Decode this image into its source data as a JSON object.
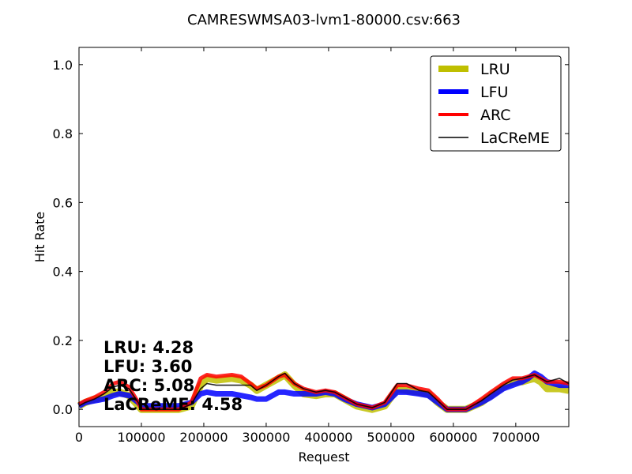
{
  "chart_data": {
    "type": "line",
    "title": "CAMRESWMSA03-lvm1-80000.csv:663",
    "xlabel": "Request",
    "ylabel": "Hit Rate",
    "xlim": [
      0,
      785000
    ],
    "ylim": [
      -0.05,
      1.05
    ],
    "x_ticks": [
      0,
      100000,
      200000,
      300000,
      400000,
      500000,
      600000,
      700000
    ],
    "x_tick_labels": [
      "0",
      "100000",
      "200000",
      "300000",
      "400000",
      "500000",
      "600000",
      "700000"
    ],
    "y_ticks": [
      0.0,
      0.2,
      0.4,
      0.6,
      0.8,
      1.0
    ],
    "y_tick_labels": [
      "0.0",
      "0.2",
      "0.4",
      "0.6",
      "0.8",
      "1.0"
    ],
    "grid": false,
    "legend_position": "top-right",
    "x": [
      0,
      10000,
      25000,
      40000,
      55000,
      65000,
      80000,
      95000,
      100000,
      130000,
      160000,
      180000,
      195000,
      205000,
      220000,
      245000,
      260000,
      275000,
      285000,
      300000,
      320000,
      330000,
      345000,
      360000,
      380000,
      395000,
      410000,
      425000,
      445000,
      470000,
      490000,
      510000,
      525000,
      545000,
      560000,
      575000,
      590000,
      620000,
      645000,
      660000,
      680000,
      695000,
      710000,
      720000,
      730000,
      740000,
      750000,
      770000,
      785000
    ],
    "series": [
      {
        "name": "LRU",
        "color": "#bfbf00",
        "linewidth": 9,
        "values": [
          0.01,
          0.02,
          0.03,
          0.035,
          0.05,
          0.05,
          0.04,
          0.01,
          0.0,
          0.0,
          0.0,
          0.01,
          0.07,
          0.09,
          0.085,
          0.09,
          0.085,
          0.07,
          0.055,
          0.07,
          0.09,
          0.1,
          0.07,
          0.045,
          0.04,
          0.045,
          0.045,
          0.03,
          0.01,
          0.0,
          0.01,
          0.06,
          0.055,
          0.05,
          0.045,
          0.02,
          0.0,
          0.0,
          0.02,
          0.04,
          0.065,
          0.08,
          0.08,
          0.085,
          0.09,
          0.08,
          0.06,
          0.06,
          0.055
        ]
      },
      {
        "name": "LFU",
        "color": "#0000ff",
        "linewidth": 7,
        "values": [
          0.01,
          0.02,
          0.025,
          0.03,
          0.04,
          0.045,
          0.04,
          0.02,
          0.01,
          0.01,
          0.01,
          0.02,
          0.045,
          0.05,
          0.045,
          0.045,
          0.04,
          0.035,
          0.03,
          0.03,
          0.05,
          0.05,
          0.045,
          0.045,
          0.045,
          0.05,
          0.045,
          0.03,
          0.015,
          0.005,
          0.015,
          0.05,
          0.05,
          0.045,
          0.04,
          0.02,
          0.0,
          0.0,
          0.02,
          0.035,
          0.06,
          0.07,
          0.08,
          0.09,
          0.105,
          0.095,
          0.08,
          0.07,
          0.07
        ]
      },
      {
        "name": "ARC",
        "color": "#ff0000",
        "linewidth": 5,
        "values": [
          0.015,
          0.025,
          0.035,
          0.05,
          0.075,
          0.08,
          0.065,
          0.02,
          0.0,
          0.0,
          0.0,
          0.02,
          0.09,
          0.1,
          0.095,
          0.1,
          0.095,
          0.075,
          0.06,
          0.07,
          0.095,
          0.1,
          0.075,
          0.06,
          0.05,
          0.055,
          0.05,
          0.035,
          0.015,
          0.005,
          0.02,
          0.07,
          0.07,
          0.06,
          0.055,
          0.03,
          0.0,
          0.0,
          0.03,
          0.05,
          0.075,
          0.09,
          0.09,
          0.095,
          0.1,
          0.09,
          0.08,
          0.08,
          0.075
        ]
      },
      {
        "name": "LaCReME",
        "color": "#000000",
        "linewidth": 1.6,
        "values": [
          0.01,
          0.02,
          0.03,
          0.045,
          0.065,
          0.07,
          0.06,
          0.02,
          0.0,
          0.0,
          0.0,
          0.015,
          0.06,
          0.075,
          0.07,
          0.07,
          0.07,
          0.07,
          0.055,
          0.07,
          0.095,
          0.105,
          0.075,
          0.06,
          0.05,
          0.055,
          0.05,
          0.035,
          0.015,
          0.005,
          0.02,
          0.075,
          0.075,
          0.055,
          0.05,
          0.025,
          0.0,
          0.0,
          0.025,
          0.045,
          0.07,
          0.085,
          0.09,
          0.095,
          0.1,
          0.09,
          0.08,
          0.09,
          0.075
        ]
      }
    ],
    "annotations": [
      {
        "label": "LRU:",
        "value": "4.28"
      },
      {
        "label": "LFU:",
        "value": "3.60"
      },
      {
        "label": "ARC:",
        "value": "5.08"
      },
      {
        "label": "LaCReME:",
        "value": "4.58"
      }
    ]
  }
}
